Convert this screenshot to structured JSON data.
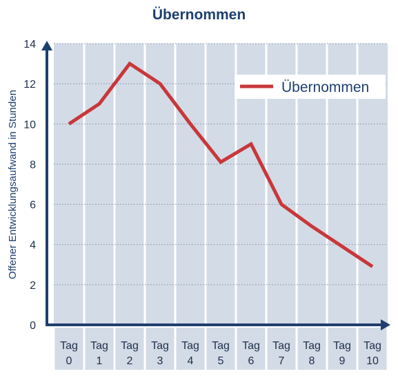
{
  "chart_data": {
    "type": "line",
    "title": "Übernommen",
    "xlabel": "",
    "ylabel": "Offener Entwicklungsaufwand in Stunden",
    "categories": [
      [
        "Tag",
        "0"
      ],
      [
        "Tag",
        "1"
      ],
      [
        "Tag",
        "2"
      ],
      [
        "Tag",
        "3"
      ],
      [
        "Tag",
        "4"
      ],
      [
        "Tag",
        "5"
      ],
      [
        "Tag",
        "6"
      ],
      [
        "Tag",
        "7"
      ],
      [
        "Tag",
        "8"
      ],
      [
        "Tag",
        "9"
      ],
      [
        "Tag",
        "10"
      ]
    ],
    "series": [
      {
        "name": "Übernommen",
        "values": [
          10,
          11,
          13,
          12,
          10,
          8.1,
          9,
          6,
          4.9,
          3.9,
          2.9
        ],
        "color": "#c8373a"
      }
    ],
    "ylim": [
      0,
      14
    ],
    "yticks": [
      "0",
      "2",
      "4",
      "6",
      "8",
      "10",
      "12",
      "14"
    ],
    "grid": true,
    "legend_position": "top-right",
    "colors": {
      "plot_bg": "#d3dbe6",
      "axis": "#1f3f6e",
      "grid": "#7f90a8"
    }
  }
}
